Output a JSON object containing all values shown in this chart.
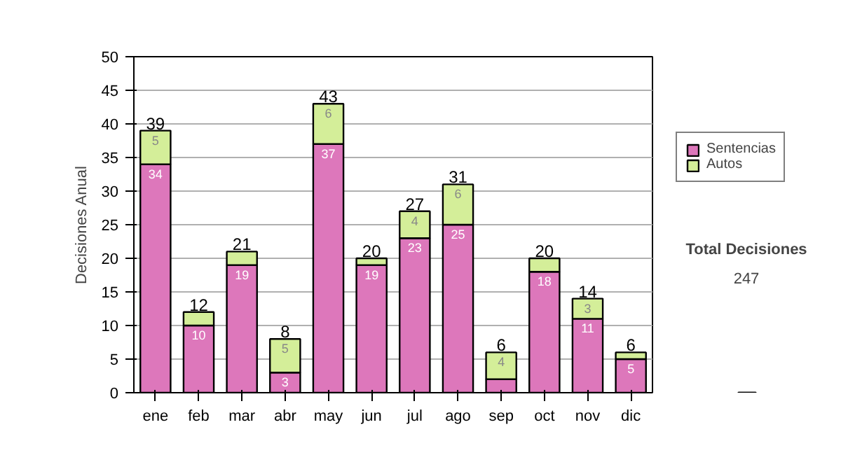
{
  "chart_data": {
    "type": "bar",
    "stacked": true,
    "ylabel": "Decisiones Anual",
    "categories": [
      "ene",
      "feb",
      "mar",
      "abr",
      "may",
      "jun",
      "jul",
      "ago",
      "sep",
      "oct",
      "nov",
      "dic"
    ],
    "series": [
      {
        "name": "Sentencias",
        "color": "#dd77bb",
        "values": [
          34,
          10,
          19,
          3,
          37,
          19,
          23,
          25,
          2,
          18,
          11,
          5
        ],
        "value_labels": [
          "34",
          "10",
          "19",
          "3",
          "37",
          "19",
          "23",
          "25",
          null,
          "18",
          "11",
          "5"
        ]
      },
      {
        "name": "Autos",
        "color": "#d4ee99",
        "values": [
          5,
          2,
          2,
          5,
          6,
          1,
          4,
          6,
          4,
          2,
          3,
          1
        ],
        "value_labels": [
          "5",
          null,
          null,
          "5",
          "6",
          null,
          "4",
          "6",
          "4",
          null,
          "3",
          null
        ]
      }
    ],
    "totals": [
      "39",
      "12",
      "21",
      "8",
      "43",
      "20",
      "27",
      "31",
      "6",
      "20",
      "14",
      "6"
    ],
    "ylim": [
      0,
      50
    ],
    "yticks": [
      0,
      5,
      10,
      15,
      20,
      25,
      30,
      35,
      40,
      45,
      50
    ],
    "grid": "y",
    "legend": "right",
    "annotations": [
      "Total Decisiones",
      "247"
    ]
  }
}
